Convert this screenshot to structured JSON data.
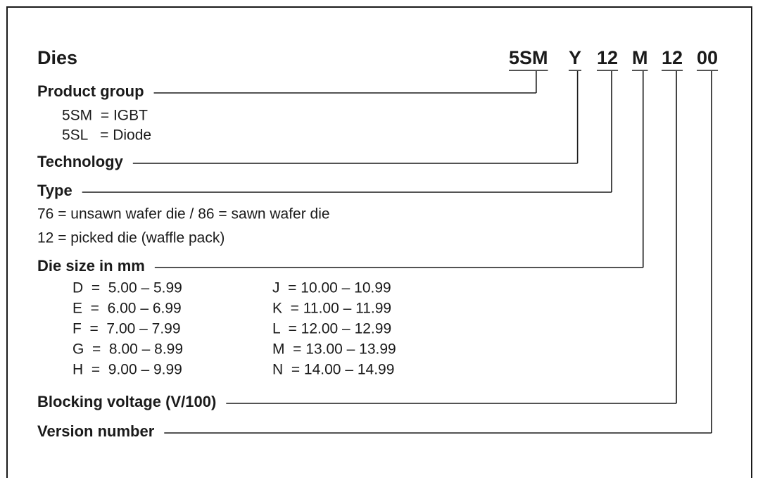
{
  "title": "Dies",
  "code_parts": [
    "5SM",
    "Y",
    "12",
    "M",
    "12",
    "00"
  ],
  "product_group": {
    "label": "Product group",
    "items": [
      "5SM  = IGBT",
      "5SL   = Diode"
    ]
  },
  "technology": {
    "label": "Technology"
  },
  "type": {
    "label": "Type",
    "items": [
      "76 = unsawn wafer die / 86 = sawn wafer die",
      "12 = picked die (waffle pack)"
    ]
  },
  "die_size": {
    "label": "Die size in mm",
    "rows": [
      [
        "D  =  5.00 – 5.99",
        "J  = 10.00 – 10.99"
      ],
      [
        "E  =  6.00 – 6.99",
        "K  = 11.00 – 11.99"
      ],
      [
        "F  =  7.00 – 7.99",
        "L  = 12.00 – 12.99"
      ],
      [
        "G  =  8.00 – 8.99",
        "M  = 13.00 – 13.99"
      ],
      [
        "H  =  9.00 – 9.99",
        "N  = 14.00 – 14.99"
      ]
    ]
  },
  "blocking_voltage": {
    "label": "Blocking voltage (V/100)"
  },
  "version_number": {
    "label": "Version number"
  }
}
